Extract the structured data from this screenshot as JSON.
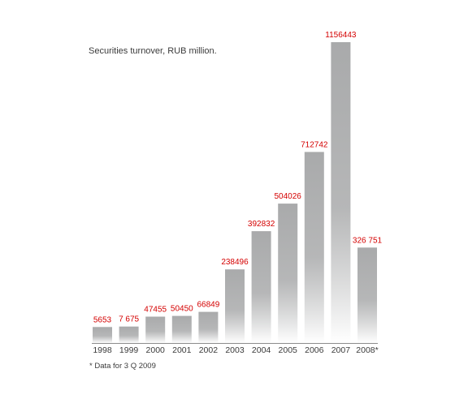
{
  "chart_data": {
    "type": "bar",
    "title": "Securities turnover, RUB million.",
    "categories": [
      "1998",
      "1999",
      "2000",
      "2001",
      "2002",
      "2003",
      "2004",
      "2005",
      "2006",
      "2007",
      "2008*"
    ],
    "values": [
      5653,
      7675,
      47455,
      50450,
      66849,
      238496,
      392832,
      504026,
      712742,
      1156443,
      326751
    ],
    "value_labels": [
      "5653",
      "7 675",
      "47455",
      "50450",
      "66849",
      "238496",
      "392832",
      "504026",
      "712742",
      "1156443",
      "326 751"
    ],
    "xlabel": "",
    "ylabel": "",
    "grid": false,
    "colors": {
      "bar_top": "#a9aaab",
      "bar_bottom": "#ffffff",
      "value_label": "#d40000",
      "axis_line": "#8c8c8c",
      "text": "#3a3a3a"
    }
  },
  "footnote": "* Data for 3 Q 2009"
}
